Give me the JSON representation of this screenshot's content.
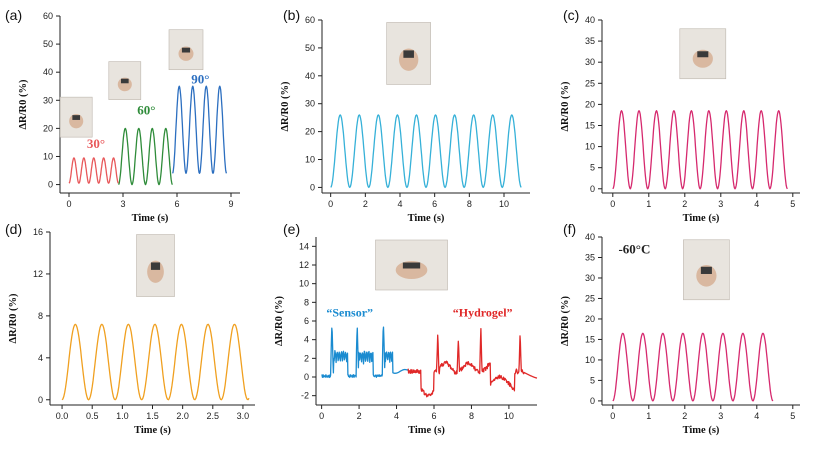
{
  "colors": {
    "red": "#e8585a",
    "green": "#2f8c3a",
    "blue": "#2c6fc0",
    "cyan": "#36b1d8",
    "magenta": "#d6296e",
    "orange": "#f0a020",
    "sensor_blue": "#1a8bd0",
    "hydrogel_red": "#e02828",
    "axis": "#222222"
  },
  "chart_data": [
    {
      "panel": "(a)",
      "type": "line",
      "xlabel": "Time (s)",
      "ylabel": "ΔR/R0 (%)",
      "xlim": [
        -0.5,
        9.5
      ],
      "ylim": [
        -3,
        60
      ],
      "xticks": [
        0,
        3,
        6,
        9
      ],
      "yticks": [
        0,
        10,
        20,
        30,
        40,
        50,
        60
      ],
      "series": [
        {
          "color": "red",
          "start": 0.0,
          "end": 2.75,
          "period": 0.55,
          "amplitude": 9,
          "baseline": 0.5
        },
        {
          "color": "green",
          "start": 2.75,
          "end": 5.75,
          "period": 0.75,
          "amplitude": 20,
          "baseline": 0
        },
        {
          "color": "blue",
          "start": 5.75,
          "end": 8.75,
          "period": 0.75,
          "amplitude": 31,
          "baseline": 4
        }
      ],
      "annotations": [
        {
          "text": "30°",
          "color": "red",
          "x": 1.5,
          "y": 13
        },
        {
          "text": "60°",
          "color": "green",
          "x": 4.3,
          "y": 25
        },
        {
          "text": "90°",
          "color": "blue",
          "x": 7.3,
          "y": 36
        }
      ],
      "photos": [
        {
          "x": 0.4,
          "y": 24
        },
        {
          "x": 3.1,
          "y": 37
        },
        {
          "x": 6.5,
          "y": 48
        }
      ]
    },
    {
      "panel": "(b)",
      "type": "line",
      "xlabel": "Time (s)",
      "ylabel": "ΔR/R0 (%)",
      "xlim": [
        -0.5,
        11.5
      ],
      "ylim": [
        -2,
        60
      ],
      "xticks": [
        0,
        2,
        4,
        6,
        8,
        10
      ],
      "yticks": [
        0,
        10,
        20,
        30,
        40,
        50,
        60
      ],
      "series": [
        {
          "color": "cyan",
          "start": 0.0,
          "end": 11.0,
          "period": 1.1,
          "amplitude": 26,
          "baseline": 0
        }
      ],
      "photos": [
        {
          "x": 4.5,
          "y": 48
        }
      ]
    },
    {
      "panel": "(c)",
      "type": "line",
      "xlabel": "Time (s)",
      "ylabel": "ΔR/R0 (%)",
      "xlim": [
        -0.3,
        5.2
      ],
      "ylim": [
        -1,
        40
      ],
      "xticks": [
        0,
        1,
        2,
        3,
        4,
        5
      ],
      "yticks": [
        0,
        5,
        10,
        15,
        20,
        25,
        30,
        35,
        40
      ],
      "series": [
        {
          "color": "magenta",
          "start": 0.0,
          "end": 4.85,
          "period": 0.485,
          "amplitude": 18.5,
          "baseline": 0
        }
      ],
      "photos": [
        {
          "x": 2.5,
          "y": 32
        }
      ]
    },
    {
      "panel": "(d)",
      "type": "line",
      "xlabel": "Time (s)",
      "ylabel": "ΔR/R0 (%)",
      "xlim": [
        -0.2,
        3.2
      ],
      "ylim": [
        -0.5,
        16
      ],
      "xticks": [
        0.0,
        0.5,
        1.0,
        1.5,
        2.0,
        2.5,
        3.0
      ],
      "yticks": [
        0,
        4,
        8,
        12,
        16
      ],
      "series": [
        {
          "color": "orange",
          "start": 0.0,
          "end": 3.1,
          "period": 0.44,
          "amplitude": 7.2,
          "baseline": 0
        }
      ],
      "photos": [
        {
          "x": 1.55,
          "y": 12.8
        }
      ]
    },
    {
      "panel": "(e)",
      "type": "line",
      "xlabel": "Time (s)",
      "ylabel": "ΔR/R0 (%)",
      "xlim": [
        -0.3,
        11.5
      ],
      "ylim": [
        -3,
        15
      ],
      "xticks": [
        0,
        2,
        4,
        6,
        8,
        10
      ],
      "yticks": [
        -2,
        0,
        2,
        4,
        6,
        8,
        10,
        12,
        14
      ],
      "series": [
        {
          "color": "sensor_blue",
          "kind": "sensor"
        },
        {
          "color": "hydrogel_red",
          "kind": "hydrogel"
        }
      ],
      "annotations": [
        {
          "text": "“Sensor”",
          "color": "sensor_blue",
          "x": 1.5,
          "y": 6.5
        },
        {
          "text": "“Hydrogel”",
          "color": "hydrogel_red",
          "x": 8.6,
          "y": 6.5
        }
      ],
      "photos": [
        {
          "x": 4.8,
          "y": 12
        }
      ]
    },
    {
      "panel": "(f)",
      "type": "line",
      "xlabel": "Time (s)",
      "ylabel": "ΔR/R0 (%)",
      "xlim": [
        -0.3,
        5.2
      ],
      "ylim": [
        -1,
        40
      ],
      "xticks": [
        0,
        1,
        2,
        3,
        4,
        5
      ],
      "yticks": [
        0,
        5,
        10,
        15,
        20,
        25,
        30,
        35,
        40
      ],
      "series": [
        {
          "color": "magenta",
          "start": 0.0,
          "end": 4.45,
          "period": 0.556,
          "amplitude": 16.5,
          "baseline": 0
        }
      ],
      "annotations": [
        {
          "text": "-60°C",
          "color": "axis",
          "x": 0.6,
          "y": 36
        }
      ],
      "photos": [
        {
          "x": 2.6,
          "y": 32
        }
      ]
    }
  ]
}
